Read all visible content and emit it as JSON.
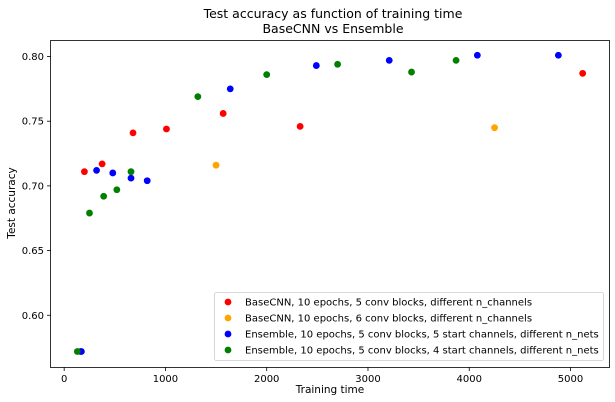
{
  "chart_data": {
    "type": "scatter",
    "title": "Test accuracy as function of training time",
    "subtitle": "BaseCNN vs Ensemble",
    "xlabel": "Training time",
    "ylabel": "Test accuracy",
    "xlim": [
      -130,
      5380
    ],
    "ylim": [
      0.56,
      0.812
    ],
    "xticks": [
      0,
      1000,
      2000,
      3000,
      4000,
      5000
    ],
    "yticks": [
      0.6,
      0.65,
      0.7,
      0.75,
      0.8
    ],
    "xtick_labels": [
      "0",
      "1000",
      "2000",
      "3000",
      "4000",
      "5000"
    ],
    "ytick_labels": [
      "0.60",
      "0.65",
      "0.70",
      "0.75",
      "0.80"
    ],
    "grid": false,
    "legend_position": "bottom-right",
    "series": [
      {
        "name": "BaseCNN, 10 epochs, 5 conv blocks, different n_channels",
        "color": "#ff0000",
        "points": [
          [
            160,
            0.572
          ],
          [
            200,
            0.711
          ],
          [
            375,
            0.717
          ],
          [
            680,
            0.741
          ],
          [
            1010,
            0.744
          ],
          [
            1570,
            0.756
          ],
          [
            2330,
            0.746
          ],
          [
            5120,
            0.787
          ]
        ]
      },
      {
        "name": "BaseCNN, 10 epochs, 6 conv blocks, different n_channels",
        "color": "#ffa500",
        "points": [
          [
            1500,
            0.716
          ],
          [
            4250,
            0.745
          ]
        ]
      },
      {
        "name": "Ensemble, 10 epochs, 5 conv blocks, 5 start channels, different n_nets",
        "color": "#0000ff",
        "points": [
          [
            170,
            0.572
          ],
          [
            320,
            0.712
          ],
          [
            480,
            0.71
          ],
          [
            660,
            0.706
          ],
          [
            820,
            0.704
          ],
          [
            1640,
            0.775
          ],
          [
            2490,
            0.793
          ],
          [
            3210,
            0.797
          ],
          [
            4080,
            0.801
          ],
          [
            4880,
            0.801
          ]
        ]
      },
      {
        "name": "Ensemble, 10 epochs, 5 conv blocks, 4 start channels, different n_nets",
        "color": "#008000",
        "points": [
          [
            130,
            0.572
          ],
          [
            250,
            0.679
          ],
          [
            390,
            0.692
          ],
          [
            520,
            0.697
          ],
          [
            660,
            0.711
          ],
          [
            1320,
            0.769
          ],
          [
            2000,
            0.786
          ],
          [
            2700,
            0.794
          ],
          [
            3430,
            0.788
          ],
          [
            3870,
            0.797
          ]
        ]
      }
    ]
  }
}
